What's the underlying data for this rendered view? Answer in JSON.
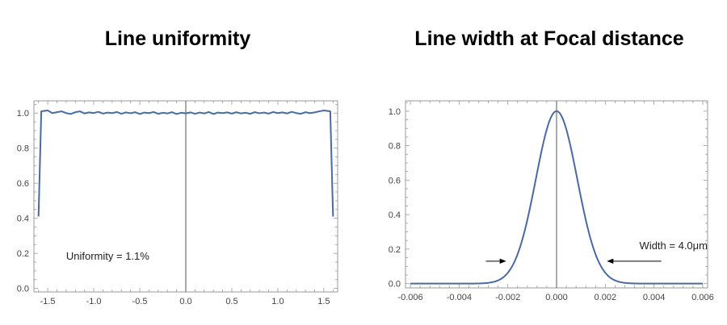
{
  "chart_data": [
    {
      "type": "line",
      "title": "Line uniformity",
      "xlabel": "",
      "ylabel": "",
      "xlim": [
        -1.65,
        1.65
      ],
      "ylim": [
        -0.02,
        1.07
      ],
      "xticks": [
        -1.5,
        -1.0,
        -0.5,
        0.0,
        0.5,
        1.0,
        1.5
      ],
      "xtick_labels": [
        "-1.5",
        "-1.0",
        "-0.5",
        "0.0",
        "0.5",
        "1.0",
        "1.5"
      ],
      "yticks": [
        0.0,
        0.2,
        0.4,
        0.6,
        0.8,
        1.0
      ],
      "ytick_labels": [
        "0.0",
        "0.2",
        "0.4",
        "0.6",
        "0.8",
        "1.0"
      ],
      "grid": false,
      "series": [
        {
          "color": "#4a6aa5",
          "x": [
            -1.6,
            -1.57,
            -1.5,
            -1.45,
            -1.4,
            -1.35,
            -1.3,
            -1.25,
            -1.2,
            -1.15,
            -1.1,
            -1.05,
            -1.0,
            -0.95,
            -0.9,
            -0.85,
            -0.8,
            -0.75,
            -0.7,
            -0.65,
            -0.6,
            -0.55,
            -0.5,
            -0.45,
            -0.4,
            -0.35,
            -0.3,
            -0.25,
            -0.2,
            -0.15,
            -0.1,
            -0.05,
            0.0,
            0.05,
            0.1,
            0.15,
            0.2,
            0.25,
            0.3,
            0.35,
            0.4,
            0.45,
            0.5,
            0.55,
            0.6,
            0.65,
            0.7,
            0.75,
            0.8,
            0.85,
            0.9,
            0.95,
            1.0,
            1.05,
            1.1,
            1.15,
            1.2,
            1.25,
            1.3,
            1.35,
            1.4,
            1.45,
            1.5,
            1.57,
            1.6
          ],
          "y": [
            0.41,
            1.01,
            1.015,
            1.0,
            1.005,
            1.01,
            1.0,
            0.995,
            1.005,
            1.01,
            0.998,
            1.004,
            1.0,
            1.007,
            0.997,
            1.003,
            1.0,
            1.006,
            0.996,
            1.004,
            0.999,
            1.005,
            0.995,
            1.003,
            1.0,
            1.006,
            0.996,
            1.002,
            0.998,
            1.005,
            0.995,
            1.002,
            0.998,
            1.004,
            0.996,
            1.003,
            0.998,
            1.006,
            0.995,
            1.003,
            1.0,
            1.004,
            0.997,
            1.005,
            0.998,
            1.002,
            0.996,
            1.005,
            0.999,
            1.003,
            0.997,
            1.006,
            1.0,
            1.004,
            0.998,
            1.007,
            1.0,
            0.996,
            1.005,
            1.0,
            1.004,
            1.01,
            1.015,
            1.01,
            0.41
          ]
        }
      ],
      "annotations": [
        {
          "text": "Uniformity = 1.1%",
          "x": -1.3,
          "y": 0.165
        }
      ],
      "reference_line": {
        "orientation": "vertical",
        "x": 0.0
      }
    },
    {
      "type": "line",
      "title": "Line width at Focal distance",
      "xlabel": "",
      "ylabel": "",
      "xlim": [
        -0.0062,
        0.0062
      ],
      "ylim": [
        -0.025,
        1.06
      ],
      "xticks": [
        -0.006,
        -0.004,
        -0.002,
        0.0,
        0.002,
        0.004,
        0.006
      ],
      "xtick_labels": [
        "-0.006",
        "-0.004",
        "-0.002",
        "0.000",
        "0.002",
        "0.004",
        "0.006"
      ],
      "yticks": [
        0.0,
        0.2,
        0.4,
        0.6,
        0.8,
        1.0
      ],
      "ytick_labels": [
        "0.0",
        "0.2",
        "0.4",
        "0.6",
        "0.8",
        "1.0"
      ],
      "grid": false,
      "series": [
        {
          "color": "#4a6aa5",
          "function": "gaussian",
          "amplitude": 1.0,
          "center": 0.0,
          "sigma": 0.00085,
          "x_range": [
            -0.006,
            0.006
          ]
        }
      ],
      "annotations": [
        {
          "text": "Width = 4.0μm",
          "x": 0.0034,
          "y": 0.2
        }
      ],
      "arrows": [
        {
          "from": [
            -0.0029,
            0.13
          ],
          "to": [
            -0.0021,
            0.13
          ]
        },
        {
          "from": [
            0.0043,
            0.13
          ],
          "to": [
            0.0021,
            0.13
          ]
        }
      ],
      "reference_line": {
        "orientation": "vertical",
        "x": 0.0
      }
    }
  ]
}
